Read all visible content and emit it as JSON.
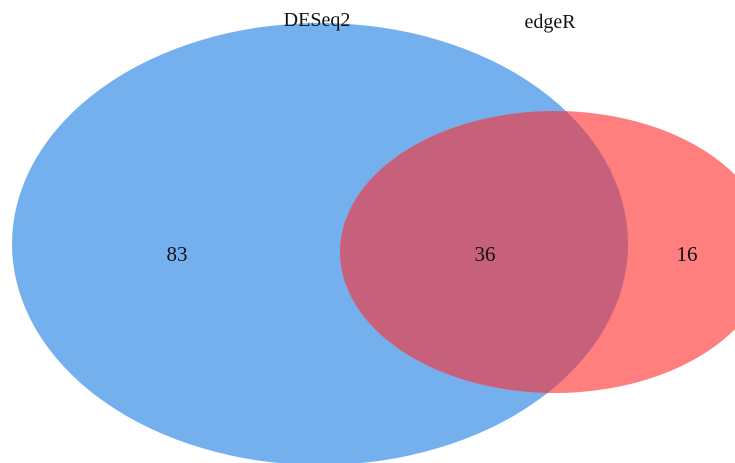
{
  "chart_data": {
    "type": "venn",
    "sets": [
      {
        "name": "DESeq2",
        "color": "#74b0ee"
      },
      {
        "name": "edgeR",
        "color": "#ff7f7f"
      }
    ],
    "overlap_color": "#c7607b",
    "regions": [
      {
        "sets": [
          "DESeq2"
        ],
        "count": "83"
      },
      {
        "sets": [
          "DESeq2",
          "edgeR"
        ],
        "count": "36"
      },
      {
        "sets": [
          "edgeR"
        ],
        "count": "16"
      }
    ]
  }
}
